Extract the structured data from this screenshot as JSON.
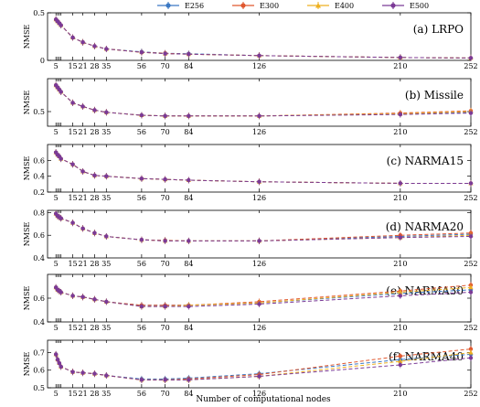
{
  "chart_data": {
    "type": "line",
    "xlabel": "Number of computational nodes",
    "x": [
      5,
      6,
      7,
      8,
      15,
      21,
      28,
      35,
      56,
      70,
      84,
      126,
      210,
      252
    ],
    "xticks": [
      5,
      15,
      21,
      28,
      35,
      56,
      70,
      84,
      126,
      210,
      252
    ],
    "legend": {
      "position": "top",
      "entries": [
        {
          "name": "E256",
          "color": "#3b78c3",
          "marker": "circle"
        },
        {
          "name": "E300",
          "color": "#e0582f",
          "marker": "circle"
        },
        {
          "name": "E400",
          "color": "#eeb020",
          "marker": "triangle"
        },
        {
          "name": "E500",
          "color": "#7b3a96",
          "marker": "circle"
        }
      ]
    },
    "panels": [
      {
        "label": "(a) LRPO",
        "ylabel": "NMSE",
        "ylim": [
          0,
          0.5
        ],
        "yticks": [
          {
            "v": 0,
            "t": "0"
          },
          {
            "v": 0.5,
            "t": "0.5"
          }
        ],
        "series": [
          {
            "name": "E256",
            "values": [
              0.43,
              0.41,
              0.39,
              0.37,
              0.24,
              0.19,
              0.15,
              0.12,
              0.09,
              0.075,
              0.07,
              0.05,
              0.03,
              0.025
            ]
          },
          {
            "name": "E300",
            "values": [
              0.43,
              0.41,
              0.39,
              0.37,
              0.24,
              0.19,
              0.15,
              0.12,
              0.085,
              0.075,
              0.065,
              0.05,
              0.03,
              0.025
            ]
          },
          {
            "name": "E400",
            "values": [
              0.43,
              0.41,
              0.39,
              0.37,
              0.24,
              0.19,
              0.15,
              0.12,
              0.085,
              0.07,
              0.065,
              0.05,
              0.03,
              0.025
            ]
          },
          {
            "name": "E500",
            "values": [
              0.43,
              0.41,
              0.39,
              0.37,
              0.24,
              0.19,
              0.15,
              0.12,
              0.085,
              0.07,
              0.065,
              0.05,
              0.03,
              0.025
            ]
          }
        ]
      },
      {
        "label": "(b) Missile",
        "ylabel": "NMSE",
        "ylim": [
          0.3,
          0.95
        ],
        "yticks": [
          {
            "v": 0.5,
            "t": "0.5"
          }
        ],
        "series": [
          {
            "name": "E256",
            "values": [
              0.86,
              0.83,
              0.8,
              0.77,
              0.62,
              0.57,
              0.52,
              0.49,
              0.45,
              0.44,
              0.44,
              0.44,
              0.47,
              0.49
            ]
          },
          {
            "name": "E300",
            "values": [
              0.86,
              0.83,
              0.8,
              0.77,
              0.62,
              0.57,
              0.52,
              0.49,
              0.45,
              0.44,
              0.44,
              0.44,
              0.48,
              0.51
            ]
          },
          {
            "name": "E400",
            "values": [
              0.86,
              0.83,
              0.8,
              0.77,
              0.62,
              0.57,
              0.52,
              0.49,
              0.45,
              0.44,
              0.44,
              0.44,
              0.47,
              0.5
            ]
          },
          {
            "name": "E500",
            "values": [
              0.86,
              0.83,
              0.8,
              0.77,
              0.62,
              0.57,
              0.52,
              0.49,
              0.45,
              0.44,
              0.44,
              0.44,
              0.46,
              0.48
            ]
          }
        ]
      },
      {
        "label": "(c) NARMA15",
        "ylabel": "NMSE",
        "ylim": [
          0.2,
          0.8
        ],
        "yticks": [
          {
            "v": 0.2,
            "t": "0.2"
          },
          {
            "v": 0.4,
            "t": "0.4"
          },
          {
            "v": 0.6,
            "t": "0.6"
          }
        ],
        "series": [
          {
            "name": "E256",
            "values": [
              0.7,
              0.67,
              0.65,
              0.62,
              0.55,
              0.46,
              0.41,
              0.4,
              0.37,
              0.36,
              0.35,
              0.33,
              0.31,
              0.31
            ]
          },
          {
            "name": "E300",
            "values": [
              0.7,
              0.67,
              0.65,
              0.62,
              0.55,
              0.46,
              0.41,
              0.4,
              0.37,
              0.36,
              0.35,
              0.33,
              0.31,
              0.31
            ]
          },
          {
            "name": "E400",
            "values": [
              0.7,
              0.67,
              0.65,
              0.62,
              0.55,
              0.46,
              0.41,
              0.4,
              0.37,
              0.36,
              0.35,
              0.33,
              0.31,
              0.31
            ]
          },
          {
            "name": "E500",
            "values": [
              0.7,
              0.67,
              0.65,
              0.62,
              0.55,
              0.46,
              0.41,
              0.4,
              0.37,
              0.36,
              0.35,
              0.33,
              0.31,
              0.31
            ]
          }
        ]
      },
      {
        "label": "(d) NARMA20",
        "ylabel": "NMSE",
        "ylim": [
          0.4,
          0.82
        ],
        "yticks": [
          {
            "v": 0.4,
            "t": "0.4"
          },
          {
            "v": 0.6,
            "t": "0.6"
          },
          {
            "v": 0.8,
            "t": "0.8"
          }
        ],
        "series": [
          {
            "name": "E256",
            "values": [
              0.79,
              0.77,
              0.76,
              0.75,
              0.71,
              0.66,
              0.62,
              0.59,
              0.56,
              0.555,
              0.55,
              0.55,
              0.59,
              0.61
            ]
          },
          {
            "name": "E300",
            "values": [
              0.79,
              0.77,
              0.76,
              0.75,
              0.71,
              0.66,
              0.62,
              0.59,
              0.56,
              0.555,
              0.55,
              0.55,
              0.6,
              0.62
            ]
          },
          {
            "name": "E400",
            "values": [
              0.79,
              0.77,
              0.76,
              0.75,
              0.71,
              0.66,
              0.62,
              0.59,
              0.56,
              0.55,
              0.55,
              0.55,
              0.58,
              0.6
            ]
          },
          {
            "name": "E500",
            "values": [
              0.79,
              0.77,
              0.76,
              0.75,
              0.71,
              0.66,
              0.62,
              0.59,
              0.56,
              0.55,
              0.55,
              0.55,
              0.58,
              0.59
            ]
          }
        ]
      },
      {
        "label": "(e) NARMA30",
        "ylabel": "NMSE",
        "ylim": [
          0.4,
          0.8
        ],
        "yticks": [
          {
            "v": 0.4,
            "t": "0.4"
          },
          {
            "v": 0.6,
            "t": "0.6"
          }
        ],
        "series": [
          {
            "name": "E256",
            "values": [
              0.69,
              0.67,
              0.66,
              0.65,
              0.62,
              0.61,
              0.59,
              0.57,
              0.54,
              0.54,
              0.54,
              0.56,
              0.64,
              0.67
            ]
          },
          {
            "name": "E300",
            "values": [
              0.69,
              0.67,
              0.66,
              0.65,
              0.62,
              0.61,
              0.59,
              0.57,
              0.54,
              0.54,
              0.54,
              0.57,
              0.66,
              0.71
            ]
          },
          {
            "name": "E400",
            "values": [
              0.69,
              0.67,
              0.66,
              0.65,
              0.62,
              0.61,
              0.59,
              0.57,
              0.53,
              0.53,
              0.54,
              0.56,
              0.65,
              0.69
            ]
          },
          {
            "name": "E500",
            "values": [
              0.69,
              0.67,
              0.66,
              0.65,
              0.62,
              0.61,
              0.59,
              0.57,
              0.53,
              0.53,
              0.53,
              0.55,
              0.62,
              0.65
            ]
          }
        ]
      },
      {
        "label": "(f) NARMA40",
        "ylabel": "NMSE",
        "ylim": [
          0.5,
          0.77
        ],
        "yticks": [
          {
            "v": 0.5,
            "t": "0.5"
          },
          {
            "v": 0.6,
            "t": "0.6"
          },
          {
            "v": 0.7,
            "t": "0.7"
          }
        ],
        "series": [
          {
            "name": "E256",
            "values": [
              0.69,
              0.66,
              0.64,
              0.62,
              0.59,
              0.585,
              0.58,
              0.57,
              0.55,
              0.55,
              0.555,
              0.58,
              0.66,
              0.69
            ]
          },
          {
            "name": "E300",
            "values": [
              0.69,
              0.66,
              0.64,
              0.62,
              0.59,
              0.585,
              0.58,
              0.57,
              0.545,
              0.545,
              0.55,
              0.575,
              0.68,
              0.72
            ]
          },
          {
            "name": "E400",
            "values": [
              0.69,
              0.66,
              0.64,
              0.62,
              0.59,
              0.585,
              0.58,
              0.57,
              0.545,
              0.545,
              0.545,
              0.565,
              0.65,
              0.7
            ]
          },
          {
            "name": "E500",
            "values": [
              0.69,
              0.66,
              0.64,
              0.62,
              0.59,
              0.585,
              0.58,
              0.57,
              0.545,
              0.545,
              0.545,
              0.565,
              0.63,
              0.67
            ]
          }
        ]
      }
    ]
  }
}
